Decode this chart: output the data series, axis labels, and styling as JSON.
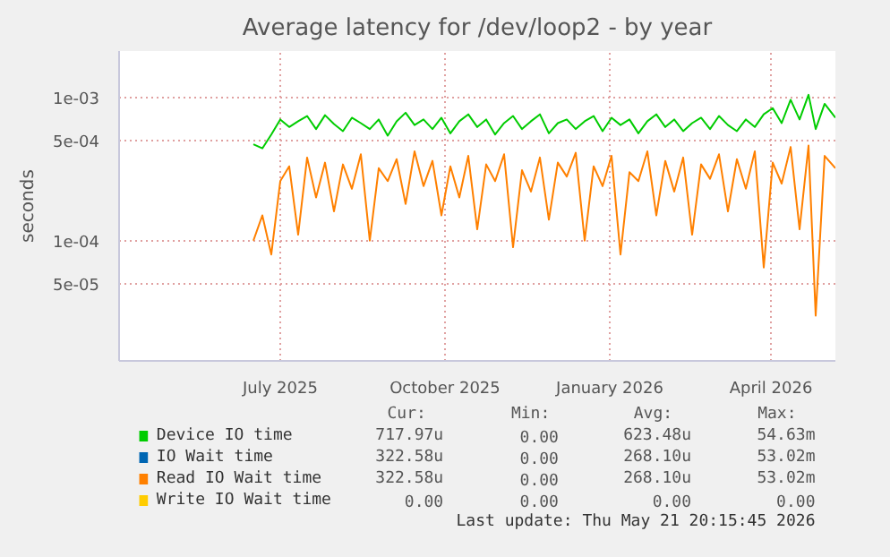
{
  "chart_data": {
    "type": "line",
    "title": "Average latency for /dev/loop2 - by year",
    "ylabel": "seconds",
    "log": "y",
    "grid": true,
    "legend": "bottom",
    "xlim": [
      "2025-04-16",
      "2026-05-21"
    ],
    "ylim": [
      1.45e-05,
      0.0021
    ],
    "xticks": [
      {
        "value": "2025-07-15",
        "label": "July 2025"
      },
      {
        "value": "2025-10-15",
        "label": "October 2025"
      },
      {
        "value": "2026-01-15",
        "label": "January 2026"
      },
      {
        "value": "2026-04-15",
        "label": "April 2026"
      }
    ],
    "yticks": [
      {
        "value": 5e-05,
        "label": "5e-05"
      },
      {
        "value": 0.0001,
        "label": "1e-04"
      },
      {
        "value": 0.0005,
        "label": "5e-04"
      },
      {
        "value": 0.001,
        "label": "1e-03"
      }
    ],
    "x": [
      "2025-06-30",
      "2025-07-05",
      "2025-07-10",
      "2025-07-15",
      "2025-07-20",
      "2025-07-25",
      "2025-07-30",
      "2025-08-04",
      "2025-08-09",
      "2025-08-14",
      "2025-08-19",
      "2025-08-24",
      "2025-08-29",
      "2025-09-03",
      "2025-09-08",
      "2025-09-13",
      "2025-09-18",
      "2025-09-23",
      "2025-09-28",
      "2025-10-03",
      "2025-10-08",
      "2025-10-13",
      "2025-10-18",
      "2025-10-23",
      "2025-10-28",
      "2025-11-02",
      "2025-11-07",
      "2025-11-12",
      "2025-11-17",
      "2025-11-22",
      "2025-11-27",
      "2025-12-02",
      "2025-12-07",
      "2025-12-12",
      "2025-12-17",
      "2025-12-22",
      "2025-12-27",
      "2026-01-01",
      "2026-01-06",
      "2026-01-11",
      "2026-01-16",
      "2026-01-21",
      "2026-01-26",
      "2026-01-31",
      "2026-02-05",
      "2026-02-10",
      "2026-02-15",
      "2026-02-20",
      "2026-02-25",
      "2026-03-02",
      "2026-03-07",
      "2026-03-12",
      "2026-03-17",
      "2026-03-22",
      "2026-03-27",
      "2026-04-01",
      "2026-04-06",
      "2026-04-11",
      "2026-04-16",
      "2026-04-21",
      "2026-04-26",
      "2026-05-01",
      "2026-05-06",
      "2026-05-10",
      "2026-05-15",
      "2026-05-21"
    ],
    "series": [
      {
        "name": "Device IO time",
        "color": "#00cc00",
        "values": [
          0.00047,
          0.00044,
          0.00055,
          0.0007,
          0.00062,
          0.00068,
          0.00074,
          0.0006,
          0.00075,
          0.00065,
          0.00058,
          0.00072,
          0.00066,
          0.0006,
          0.0007,
          0.00054,
          0.00068,
          0.00078,
          0.00064,
          0.0007,
          0.0006,
          0.00072,
          0.00056,
          0.00068,
          0.00076,
          0.00062,
          0.0007,
          0.00055,
          0.00066,
          0.00074,
          0.0006,
          0.00068,
          0.00076,
          0.00056,
          0.00066,
          0.0007,
          0.0006,
          0.00068,
          0.00074,
          0.00058,
          0.00072,
          0.00064,
          0.0007,
          0.00056,
          0.00068,
          0.00076,
          0.00062,
          0.0007,
          0.00058,
          0.00066,
          0.00072,
          0.0006,
          0.00074,
          0.00064,
          0.00058,
          0.0007,
          0.00062,
          0.00076,
          0.00084,
          0.00066,
          0.00096,
          0.0007,
          0.00104,
          0.0006,
          0.0009,
          0.00072
        ]
      },
      {
        "name": "IO Wait time",
        "color": "#0066b3",
        "values": [
          null,
          null,
          null,
          null,
          null,
          null,
          null,
          null,
          null,
          null,
          null,
          null,
          null,
          null,
          null,
          null,
          null,
          null,
          null,
          null,
          null,
          null,
          null,
          null,
          null,
          null,
          null,
          null,
          null,
          null,
          null,
          null,
          null,
          null,
          null,
          null,
          null,
          null,
          null,
          null,
          null,
          null,
          null,
          null,
          null,
          null,
          null,
          null,
          null,
          null,
          null,
          null,
          null,
          null,
          null,
          null,
          null,
          null,
          null,
          null,
          null,
          null,
          null,
          null,
          null,
          null
        ]
      },
      {
        "name": "Read IO Wait time",
        "color": "#ff8000",
        "values": [
          0.0001,
          0.00015,
          8e-05,
          0.00026,
          0.00033,
          0.00011,
          0.00038,
          0.0002,
          0.00035,
          0.00016,
          0.00034,
          0.00023,
          0.0004,
          0.0001,
          0.00032,
          0.00026,
          0.00037,
          0.00018,
          0.00042,
          0.00024,
          0.00036,
          0.00015,
          0.00033,
          0.0002,
          0.00039,
          0.00012,
          0.00034,
          0.00026,
          0.0004,
          9e-05,
          0.00031,
          0.00022,
          0.00038,
          0.00014,
          0.00035,
          0.00028,
          0.00041,
          0.0001,
          0.00033,
          0.00024,
          0.00039,
          8e-05,
          0.0003,
          0.00026,
          0.00042,
          0.00015,
          0.00036,
          0.00022,
          0.00038,
          0.00011,
          0.00034,
          0.00027,
          0.0004,
          0.00016,
          0.00037,
          0.00023,
          0.00042,
          6.5e-05,
          0.00035,
          0.00025,
          0.00045,
          0.00012,
          0.00046,
          3e-05,
          0.00039,
          0.00032
        ]
      },
      {
        "name": "Write IO Wait time",
        "color": "#ffcc00",
        "values": [
          null,
          null,
          null,
          null,
          null,
          null,
          null,
          null,
          null,
          null,
          null,
          null,
          null,
          null,
          null,
          null,
          null,
          null,
          null,
          null,
          null,
          null,
          null,
          null,
          null,
          null,
          null,
          null,
          null,
          null,
          null,
          null,
          null,
          null,
          null,
          null,
          null,
          null,
          null,
          null,
          null,
          null,
          null,
          null,
          null,
          null,
          null,
          null,
          null,
          null,
          null,
          null,
          null,
          null,
          null,
          null,
          null,
          null,
          null,
          null,
          null,
          null,
          null,
          null,
          null,
          null
        ]
      }
    ],
    "annotations": [
      "Cur:",
      "Min:",
      "Avg:",
      "Max:",
      "717.97u",
      "0.00",
      "623.48u",
      "54.63m",
      "322.58u",
      "0.00",
      "268.10u",
      "53.02m",
      "322.58u",
      "0.00",
      "268.10u",
      "53.02m",
      "0.00",
      "0.00",
      "0.00",
      "0.00",
      "Last update: Thu May 21 20:15:45 2026"
    ]
  }
}
